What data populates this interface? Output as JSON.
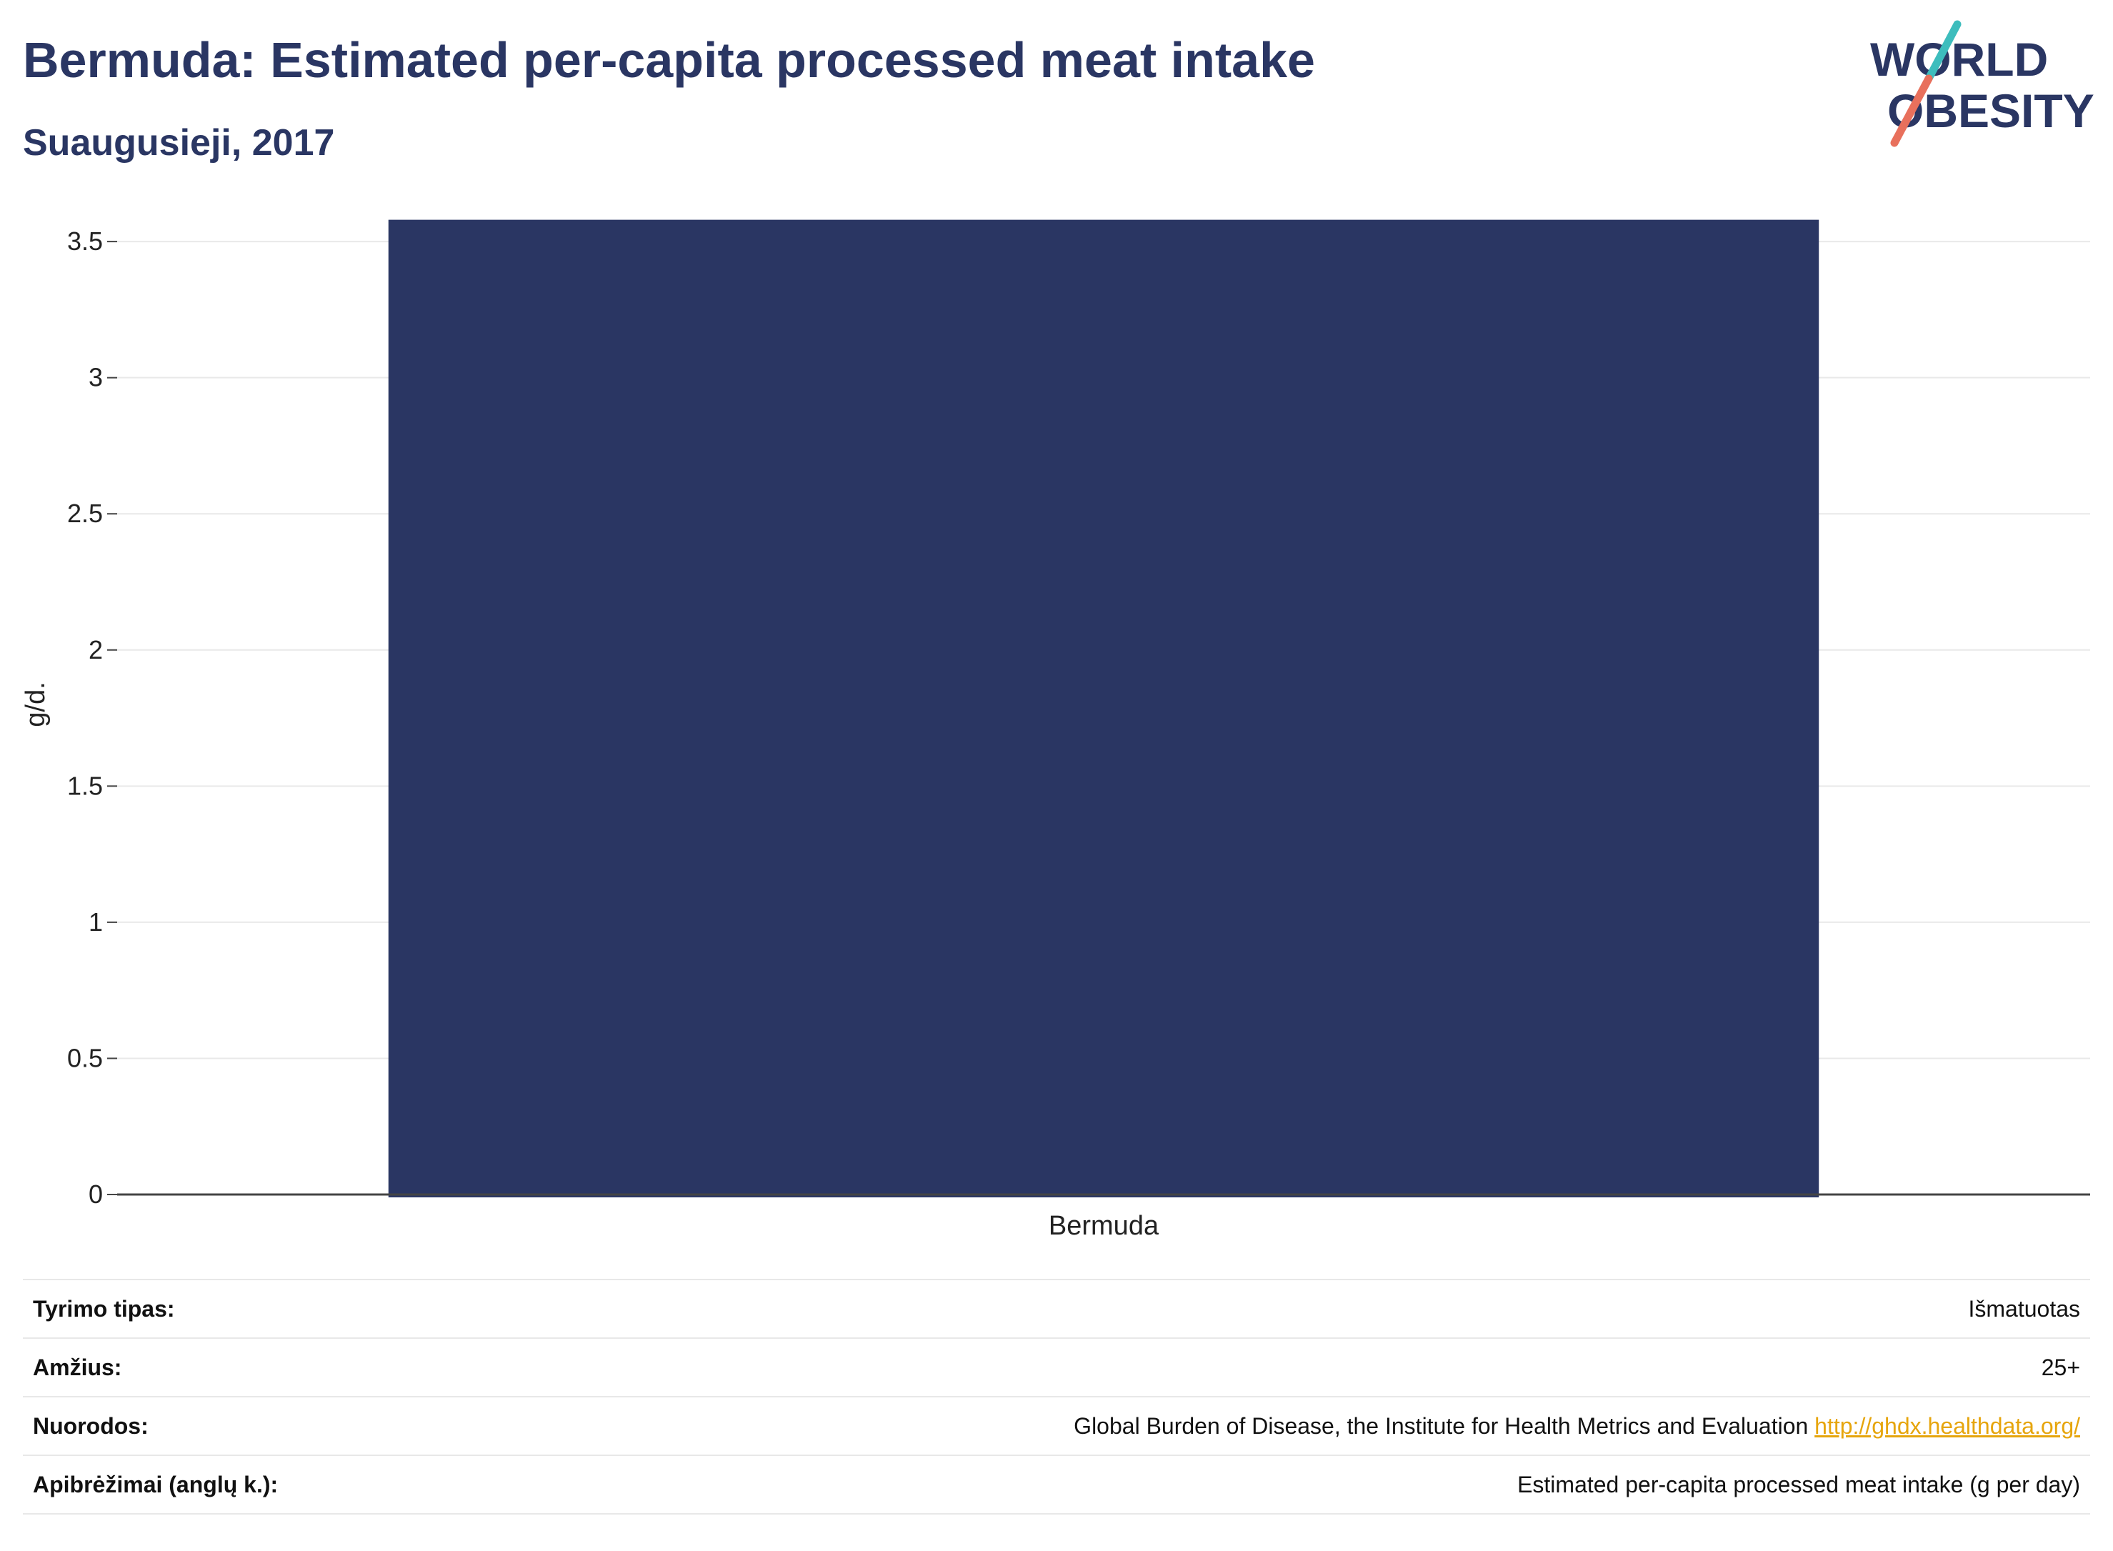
{
  "header": {
    "title": "Bermuda: Estimated per-capita processed meat intake",
    "subtitle": "Suaugusieji, 2017"
  },
  "logo": {
    "line1": "WORLD",
    "line2": "OBESITY",
    "text_color": "#2a3663",
    "accent_teal": "#3dbdbd",
    "accent_coral": "#e8705c"
  },
  "chart_data": {
    "type": "bar",
    "categories": [
      "Bermuda"
    ],
    "values": [
      3.58
    ],
    "ylabel": "g/d.",
    "ylim": [
      0,
      3.6
    ],
    "yticks": [
      0,
      0.5,
      1,
      1.5,
      2,
      2.5,
      3,
      3.5
    ],
    "ytick_labels": [
      "0",
      "0.5",
      "1",
      "1.5",
      "2",
      "2.5",
      "3",
      "3.5"
    ],
    "grid": true,
    "bar_color": "#2a3663"
  },
  "meta": {
    "rows": [
      {
        "label": "Tyrimo tipas:",
        "value": "Išmatuotas"
      },
      {
        "label": "Amžius:",
        "value": "25+"
      },
      {
        "label": "Nuorodos:",
        "value": "Global Burden of Disease, the Institute for Health Metrics and Evaluation",
        "link": "http://ghdx.healthdata.org/"
      },
      {
        "label": "Apibrėžimai (anglų k.):",
        "value": "Estimated per-capita processed meat intake (g per day)"
      }
    ]
  }
}
